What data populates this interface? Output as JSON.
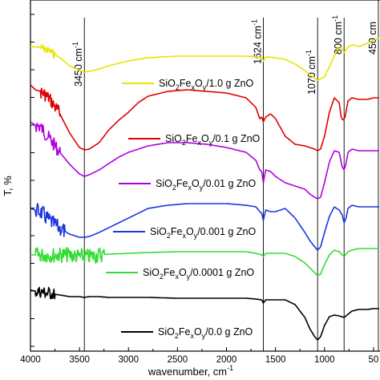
{
  "chart_data": {
    "type": "line",
    "xlabel": "wavenumber, cm",
    "xlabel_superscript": "-1",
    "ylabel": "T, %",
    "xlim": [
      4000,
      450
    ],
    "x_reversed": true,
    "x_ticks": [
      4000,
      3500,
      3000,
      2500,
      2000,
      1500,
      1000,
      50
    ],
    "grid": false,
    "legend_position": "inline, beside each curve",
    "reference_lines": [
      {
        "x": 3450,
        "label": "3450 cm",
        "sup": "-1"
      },
      {
        "x": 1624,
        "label": "1624 cm",
        "sup": "-1"
      },
      {
        "x": 1070,
        "label": "1070 cm",
        "sup": "-1"
      },
      {
        "x": 800,
        "label": "800 cm",
        "sup": "-1"
      },
      {
        "x": 450,
        "label": "450 cm",
        "sup": ""
      }
    ],
    "series": [
      {
        "name": "SiO2FexOy/1.0 g ZnO",
        "zno": "1.0",
        "color": "#e6e600",
        "points": [
          [
            4000,
            58
          ],
          [
            3900,
            59
          ],
          [
            3800,
            64
          ],
          [
            3700,
            72
          ],
          [
            3600,
            82
          ],
          [
            3500,
            88
          ],
          [
            3450,
            90
          ],
          [
            3400,
            89
          ],
          [
            3300,
            86
          ],
          [
            3200,
            82
          ],
          [
            3000,
            76
          ],
          [
            2800,
            72
          ],
          [
            2500,
            70
          ],
          [
            2200,
            70
          ],
          [
            2000,
            70
          ],
          [
            1800,
            70
          ],
          [
            1700,
            71
          ],
          [
            1640,
            72
          ],
          [
            1624,
            76
          ],
          [
            1600,
            71
          ],
          [
            1500,
            72
          ],
          [
            1400,
            74
          ],
          [
            1300,
            80
          ],
          [
            1200,
            88
          ],
          [
            1100,
            98
          ],
          [
            1070,
            100
          ],
          [
            1000,
            96
          ],
          [
            900,
            70
          ],
          [
            850,
            58
          ],
          [
            820,
            60
          ],
          [
            800,
            66
          ],
          [
            770,
            60
          ],
          [
            720,
            56
          ],
          [
            650,
            58
          ],
          [
            560,
            54
          ],
          [
            500,
            50
          ],
          [
            450,
            48
          ]
        ],
        "noise": [
          [
            3900,
            3750,
            5
          ]
        ]
      },
      {
        "name": "SiO2FexOy/0.1 g ZnO",
        "zno": "0.1",
        "color": "#e00000",
        "points": [
          [
            4000,
            106
          ],
          [
            3950,
            112
          ],
          [
            3900,
            114
          ],
          [
            3850,
            118
          ],
          [
            3800,
            124
          ],
          [
            3700,
            142
          ],
          [
            3600,
            166
          ],
          [
            3500,
            184
          ],
          [
            3450,
            187
          ],
          [
            3400,
            186
          ],
          [
            3300,
            178
          ],
          [
            3200,
            162
          ],
          [
            3100,
            150
          ],
          [
            3000,
            140
          ],
          [
            2900,
            128
          ],
          [
            2800,
            120
          ],
          [
            2600,
            114
          ],
          [
            2400,
            112
          ],
          [
            2200,
            114
          ],
          [
            2000,
            116
          ],
          [
            1800,
            122
          ],
          [
            1700,
            134
          ],
          [
            1660,
            148
          ],
          [
            1640,
            146
          ],
          [
            1624,
            152
          ],
          [
            1600,
            146
          ],
          [
            1550,
            142
          ],
          [
            1500,
            148
          ],
          [
            1400,
            170
          ],
          [
            1300,
            180
          ],
          [
            1200,
            182
          ],
          [
            1150,
            184
          ],
          [
            1100,
            186
          ],
          [
            1070,
            188
          ],
          [
            1040,
            186
          ],
          [
            1000,
            170
          ],
          [
            950,
            140
          ],
          [
            900,
            122
          ],
          [
            850,
            128
          ],
          [
            830,
            146
          ],
          [
            810,
            150
          ],
          [
            790,
            146
          ],
          [
            760,
            126
          ],
          [
            720,
            122
          ],
          [
            650,
            124
          ],
          [
            560,
            124
          ],
          [
            500,
            122
          ],
          [
            450,
            122
          ]
        ],
        "noise": [
          [
            3900,
            3700,
            9
          ]
        ]
      },
      {
        "name": "SiO2FexOy/0.01 g ZnO",
        "zno": "0.01",
        "color": "#b000e0",
        "points": [
          [
            4000,
            152
          ],
          [
            3950,
            156
          ],
          [
            3900,
            158
          ],
          [
            3850,
            166
          ],
          [
            3800,
            174
          ],
          [
            3700,
            190
          ],
          [
            3600,
            205
          ],
          [
            3500,
            217
          ],
          [
            3450,
            220
          ],
          [
            3400,
            218
          ],
          [
            3300,
            212
          ],
          [
            3200,
            204
          ],
          [
            3100,
            196
          ],
          [
            3000,
            190
          ],
          [
            2900,
            186
          ],
          [
            2800,
            182
          ],
          [
            2600,
            178
          ],
          [
            2400,
            178
          ],
          [
            2200,
            180
          ],
          [
            2000,
            184
          ],
          [
            1800,
            190
          ],
          [
            1700,
            200
          ],
          [
            1660,
            212
          ],
          [
            1640,
            214
          ],
          [
            1624,
            228
          ],
          [
            1600,
            212
          ],
          [
            1550,
            214
          ],
          [
            1500,
            220
          ],
          [
            1400,
            228
          ],
          [
            1300,
            232
          ],
          [
            1200,
            236
          ],
          [
            1150,
            242
          ],
          [
            1100,
            246
          ],
          [
            1070,
            248
          ],
          [
            1040,
            246
          ],
          [
            1000,
            228
          ],
          [
            950,
            202
          ],
          [
            900,
            188
          ],
          [
            850,
            190
          ],
          [
            820,
            208
          ],
          [
            800,
            212
          ],
          [
            780,
            204
          ],
          [
            760,
            190
          ],
          [
            720,
            186
          ],
          [
            650,
            188
          ],
          [
            560,
            188
          ],
          [
            500,
            188
          ],
          [
            450,
            188
          ]
        ],
        "noise": [
          [
            3950,
            3700,
            9
          ]
        ]
      },
      {
        "name": "SiO2FexOy/0.001 g ZnO",
        "zno": "0.001",
        "color": "#1a36e0",
        "points": [
          [
            4000,
            260
          ],
          [
            3950,
            262
          ],
          [
            3900,
            264
          ],
          [
            3850,
            270
          ],
          [
            3800,
            276
          ],
          [
            3700,
            285
          ],
          [
            3600,
            292
          ],
          [
            3500,
            296
          ],
          [
            3450,
            296
          ],
          [
            3400,
            295
          ],
          [
            3300,
            290
          ],
          [
            3200,
            284
          ],
          [
            3100,
            278
          ],
          [
            3000,
            272
          ],
          [
            2900,
            266
          ],
          [
            2800,
            260
          ],
          [
            2600,
            256
          ],
          [
            2400,
            254
          ],
          [
            2200,
            254
          ],
          [
            2000,
            254
          ],
          [
            1800,
            256
          ],
          [
            1700,
            258
          ],
          [
            1660,
            264
          ],
          [
            1640,
            266
          ],
          [
            1624,
            275
          ],
          [
            1600,
            262
          ],
          [
            1550,
            264
          ],
          [
            1500,
            264
          ],
          [
            1400,
            260
          ],
          [
            1300,
            272
          ],
          [
            1200,
            290
          ],
          [
            1150,
            300
          ],
          [
            1100,
            308
          ],
          [
            1070,
            312
          ],
          [
            1040,
            308
          ],
          [
            1000,
            290
          ],
          [
            950,
            270
          ],
          [
            900,
            258
          ],
          [
            850,
            262
          ],
          [
            820,
            268
          ],
          [
            800,
            278
          ],
          [
            780,
            272
          ],
          [
            760,
            260
          ],
          [
            720,
            256
          ],
          [
            650,
            258
          ],
          [
            560,
            258
          ],
          [
            500,
            258
          ],
          [
            450,
            258
          ]
        ],
        "noise": [
          [
            3950,
            3650,
            10
          ]
        ]
      },
      {
        "name": "SiO2FexOy/0.0001 g ZnO",
        "zno": "0.0001",
        "color": "#33dd33",
        "points": [
          [
            4000,
            318
          ],
          [
            3900,
            318
          ],
          [
            3800,
            318
          ],
          [
            3700,
            318
          ],
          [
            3600,
            318
          ],
          [
            3500,
            320
          ],
          [
            3450,
            320
          ],
          [
            3400,
            320
          ],
          [
            3300,
            318
          ],
          [
            3200,
            317
          ],
          [
            3000,
            316
          ],
          [
            2800,
            315
          ],
          [
            2500,
            314
          ],
          [
            2200,
            314
          ],
          [
            2000,
            314
          ],
          [
            1800,
            314
          ],
          [
            1700,
            316
          ],
          [
            1640,
            318
          ],
          [
            1624,
            320
          ],
          [
            1600,
            316
          ],
          [
            1500,
            316
          ],
          [
            1400,
            316
          ],
          [
            1300,
            320
          ],
          [
            1200,
            328
          ],
          [
            1150,
            334
          ],
          [
            1100,
            340
          ],
          [
            1070,
            344
          ],
          [
            1040,
            342
          ],
          [
            1000,
            330
          ],
          [
            950,
            318
          ],
          [
            900,
            312
          ],
          [
            850,
            314
          ],
          [
            800,
            320
          ],
          [
            760,
            314
          ],
          [
            720,
            312
          ],
          [
            650,
            310
          ],
          [
            560,
            310
          ],
          [
            500,
            310
          ],
          [
            450,
            310
          ]
        ],
        "noise": [
          [
            3950,
            3250,
            10
          ]
        ]
      },
      {
        "name": "SiO2FexOy/0.0 g ZnO",
        "zno": "0.0",
        "color": "#000000",
        "points": [
          [
            4000,
            362
          ],
          [
            3900,
            364
          ],
          [
            3800,
            366
          ],
          [
            3700,
            368
          ],
          [
            3600,
            370
          ],
          [
            3500,
            370
          ],
          [
            3450,
            371
          ],
          [
            3400,
            370
          ],
          [
            3300,
            370
          ],
          [
            3200,
            371
          ],
          [
            3000,
            371
          ],
          [
            2800,
            371
          ],
          [
            2500,
            372
          ],
          [
            2200,
            372
          ],
          [
            2000,
            372
          ],
          [
            1800,
            372
          ],
          [
            1700,
            373
          ],
          [
            1640,
            374
          ],
          [
            1624,
            378
          ],
          [
            1600,
            374
          ],
          [
            1500,
            374
          ],
          [
            1400,
            374
          ],
          [
            1300,
            380
          ],
          [
            1200,
            396
          ],
          [
            1150,
            410
          ],
          [
            1100,
            420
          ],
          [
            1070,
            424
          ],
          [
            1040,
            420
          ],
          [
            1000,
            406
          ],
          [
            950,
            395
          ],
          [
            900,
            393
          ],
          [
            850,
            394
          ],
          [
            800,
            396
          ],
          [
            760,
            392
          ],
          [
            720,
            388
          ],
          [
            650,
            386
          ],
          [
            560,
            386
          ],
          [
            500,
            385
          ],
          [
            450,
            385
          ]
        ],
        "noise": [
          [
            3950,
            3750,
            8
          ]
        ]
      }
    ],
    "legend": [
      {
        "zno": "1.0",
        "series": 0
      },
      {
        "zno": "0.1",
        "series": 1
      },
      {
        "zno": "0.01",
        "series": 2
      },
      {
        "zno": "0.001",
        "series": 3
      },
      {
        "zno": "0.0001",
        "series": 4
      },
      {
        "zno": "0.0",
        "series": 5
      }
    ],
    "legend_text": {
      "prefix": "SiO",
      "fe": "Fe",
      "x": "x",
      "o": "O",
      "y": "y",
      "two": "2",
      "suffix_unit": " g ZnO"
    }
  }
}
